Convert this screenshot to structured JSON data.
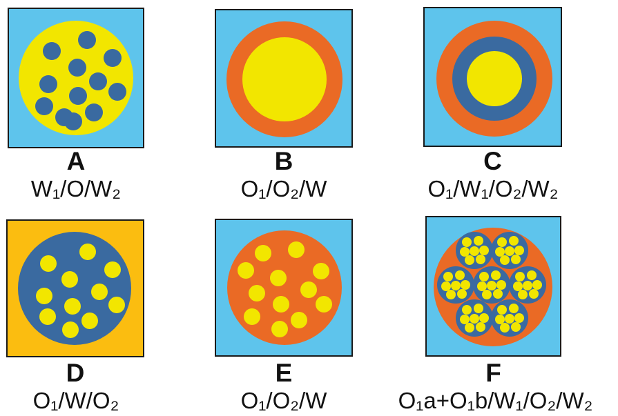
{
  "colors": {
    "water_blue": "#5ec4ec",
    "oil_yellow": "#f2e600",
    "dark_blue": "#3a6aa0",
    "orange": "#ea6a25",
    "outer_gold": "#fbbd10",
    "border": "#1a1a1a"
  },
  "panels": [
    {
      "id": "A",
      "letter": "A",
      "formula": "W₁/O/W₂",
      "background": "water_blue",
      "structure": "droplets-in-globule",
      "globule": "oil_yellow",
      "droplets": "dark_blue",
      "droplet_count": 12
    },
    {
      "id": "B",
      "letter": "B",
      "formula": "O₁/O₂/W",
      "background": "water_blue",
      "structure": "core-shell",
      "shell": "orange",
      "core": "oil_yellow"
    },
    {
      "id": "C",
      "letter": "C",
      "formula": "O₁/W₁/O₂/W₂",
      "background": "water_blue",
      "structure": "core-double-shell",
      "outer_shell": "orange",
      "inner_shell": "dark_blue",
      "core": "oil_yellow"
    },
    {
      "id": "D",
      "letter": "D",
      "formula": "O₁/W/O₂",
      "background": "outer_gold",
      "structure": "droplets-in-globule",
      "globule": "dark_blue",
      "droplets": "oil_yellow",
      "droplet_count": 12
    },
    {
      "id": "E",
      "letter": "E",
      "formula": "O₁/O₂/W",
      "background": "water_blue",
      "structure": "droplets-in-globule",
      "globule": "orange",
      "droplets": "oil_yellow",
      "droplet_count": 13
    },
    {
      "id": "F",
      "letter": "F",
      "formula": "O₁a+O₁b/W₁/O₂/W₂",
      "background": "water_blue",
      "structure": "nested-globules",
      "globule": "orange",
      "inner_globules": "dark_blue",
      "droplets": "oil_yellow",
      "inner_globule_count": 7
    }
  ]
}
